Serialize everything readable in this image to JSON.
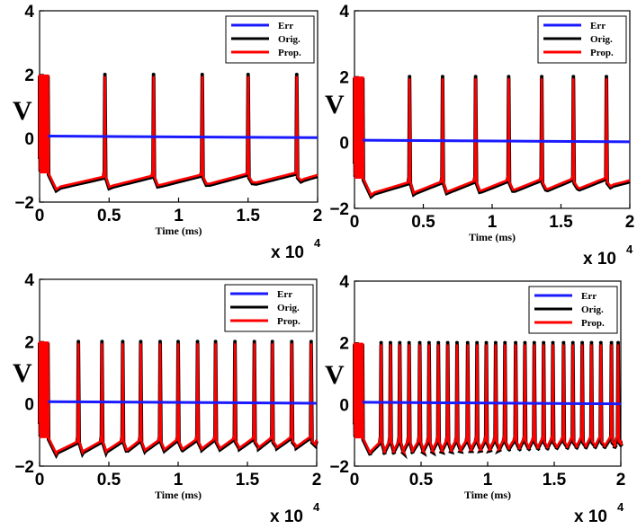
{
  "chart_data": [
    {
      "type": "line",
      "panel": "top-left",
      "xlabel": "Time (ms)",
      "ylabel": "V",
      "x_multiplier": "x 10",
      "x_multiplier_exp": "4",
      "xlim": [
        0,
        2
      ],
      "ylim": [
        -2,
        4
      ],
      "xticks": [
        "0",
        "0.5",
        "1",
        "1.5",
        "2"
      ],
      "yticks": [
        "−2",
        "0",
        "2",
        "4"
      ],
      "legend": [
        "Err",
        "Orig.",
        "Prop."
      ],
      "legend_position": "top-right",
      "series": [
        {
          "name": "Err",
          "color": "#1a1aff",
          "values": [
            0.07,
            0.0
          ]
        },
        {
          "name": "Orig.",
          "color": "#000000",
          "peak": 2.0,
          "trough": -1.6,
          "trough_end": -1.3
        },
        {
          "name": "Prop.",
          "color": "#ff0000",
          "peak": 2.0,
          "trough": -1.6,
          "trough_end": -1.3
        }
      ],
      "burst_end": 0.06,
      "spike_times": [
        0.47,
        0.82,
        1.17,
        1.5,
        1.85
      ]
    },
    {
      "type": "line",
      "panel": "top-right",
      "xlabel": "Time (ms)",
      "ylabel": "V",
      "x_multiplier": "x 10",
      "x_multiplier_exp": "4",
      "xlim": [
        0,
        2
      ],
      "ylim": [
        -2,
        4
      ],
      "xticks": [
        "0",
        "0.5",
        "1",
        "1.5",
        "2"
      ],
      "yticks": [
        "−2",
        "0",
        "2",
        "4"
      ],
      "legend": [
        "Err",
        "Orig.",
        "Prop."
      ],
      "legend_position": "top-right",
      "series": [
        {
          "name": "Err",
          "color": "#1a1aff",
          "values": [
            0.07,
            0.0
          ]
        },
        {
          "name": "Orig.",
          "color": "#000000",
          "peak": 2.0,
          "trough": -1.6,
          "trough_end": -1.3
        },
        {
          "name": "Prop.",
          "color": "#ff0000",
          "peak": 2.0,
          "trough": -1.6,
          "trough_end": -1.3
        }
      ],
      "burst_end": 0.06,
      "spike_times": [
        0.4,
        0.64,
        0.88,
        1.12,
        1.36,
        1.59,
        1.83
      ]
    },
    {
      "type": "line",
      "panel": "bottom-left",
      "xlabel": "Time (ms)",
      "ylabel": "V",
      "x_multiplier": "x 10",
      "x_multiplier_exp": "4",
      "xlim": [
        0,
        2
      ],
      "ylim": [
        -2,
        4
      ],
      "xticks": [
        "0",
        "0.5",
        "1",
        "1.5",
        "2"
      ],
      "yticks": [
        "−2",
        "0",
        "2",
        "4"
      ],
      "legend": [
        "Err",
        "Orig.",
        "Prop."
      ],
      "legend_position": "top-right",
      "series": [
        {
          "name": "Err",
          "color": "#1a1aff",
          "values": [
            0.07,
            0.0
          ]
        },
        {
          "name": "Orig.",
          "color": "#000000",
          "peak": 2.0,
          "trough": -1.6,
          "trough_end": -1.3
        },
        {
          "name": "Prop.",
          "color": "#ff0000",
          "peak": 2.0,
          "trough": -1.6,
          "trough_end": -1.3
        }
      ],
      "burst_end": 0.06,
      "spike_times": [
        0.28,
        0.45,
        0.6,
        0.73,
        0.87,
        1.0,
        1.14,
        1.27,
        1.41,
        1.55,
        1.68,
        1.82,
        1.96
      ]
    },
    {
      "type": "line",
      "panel": "bottom-right",
      "xlabel": "Time (ms)",
      "ylabel": "V",
      "x_multiplier": "x 10",
      "x_multiplier_exp": "4",
      "xlim": [
        0,
        2
      ],
      "ylim": [
        -2,
        4
      ],
      "xticks": [
        "0",
        "0.5",
        "1",
        "1.5",
        "2"
      ],
      "yticks": [
        "−2",
        "0",
        "2",
        "4"
      ],
      "legend": [
        "Err",
        "Orig.",
        "Prop."
      ],
      "legend_position": "top-right",
      "series": [
        {
          "name": "Err",
          "color": "#1a1aff",
          "values": [
            0.07,
            0.0
          ]
        },
        {
          "name": "Orig.",
          "color": "#000000",
          "peak": 2.0,
          "trough": -1.6,
          "trough_end": -1.3
        },
        {
          "name": "Prop.",
          "color": "#ff0000",
          "peak": 2.0,
          "trough": -1.6,
          "trough_end": -1.3
        }
      ],
      "burst_end": 0.06,
      "spike_times": [
        0.2,
        0.27,
        0.34,
        0.41,
        0.49,
        0.56,
        0.63,
        0.7,
        0.77,
        0.85,
        0.92,
        0.99,
        1.06,
        1.13,
        1.21,
        1.28,
        1.35,
        1.42,
        1.49,
        1.57,
        1.64,
        1.71,
        1.78,
        1.85,
        1.93,
        1.98
      ]
    }
  ]
}
